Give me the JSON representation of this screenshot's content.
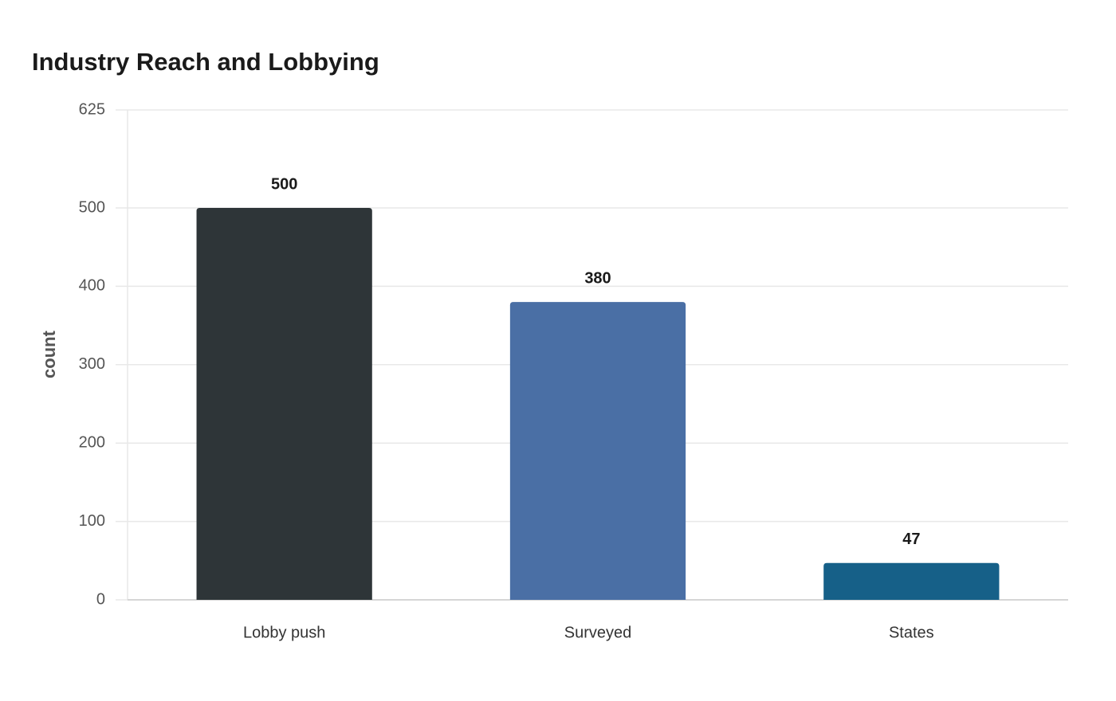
{
  "chart_data": {
    "type": "bar",
    "title": "Industry Reach and Lobbying",
    "y_label": "count",
    "categories": [
      "Lobby push",
      "Surveyed",
      "States"
    ],
    "values": [
      500,
      380,
      47
    ],
    "colors": [
      "#2e3538",
      "#4a6fa5",
      "#166088"
    ],
    "ylim": [
      0,
      625
    ],
    "yticks": [
      0,
      100,
      200,
      300,
      400,
      500,
      625
    ],
    "grid": true
  }
}
